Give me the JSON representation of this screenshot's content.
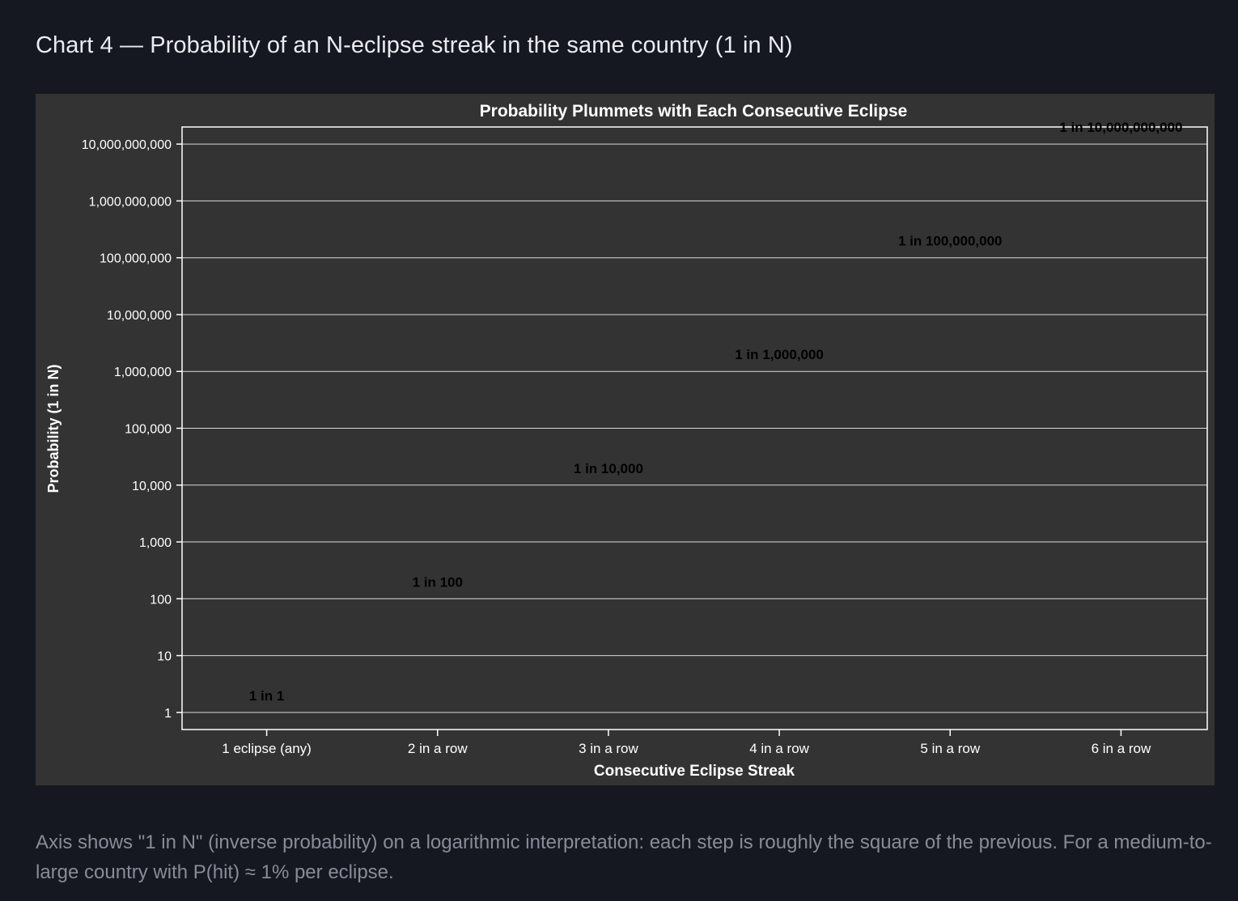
{
  "page": {
    "heading": "Chart 4 — Probability of an N-eclipse streak in the same country (1 in N)",
    "caption": "Axis shows \"1 in N\" (inverse probability) on a logarithmic interpretation: each step is roughly the square of the previous. For a medium-to-large country with P(hit) ≈ 1% per eclipse."
  },
  "colors": {
    "page_background": "#151821",
    "panel_background": "#333333",
    "axis": "#ffffff",
    "gridline": "#d9d9d9",
    "heading_text": "#e9ebf0",
    "caption_text": "#878c98",
    "data_label_text": "#000000"
  },
  "chart_data": {
    "type": "scatter",
    "title": "Probability Plummets with Each Consecutive Eclipse",
    "xlabel": "Consecutive Eclipse Streak",
    "ylabel": "Probability (1 in N)",
    "y_scale": "log",
    "ylim": [
      0.5,
      20000000000
    ],
    "grid": true,
    "legend": "none",
    "marker": "none (text labels only)",
    "categories": [
      "1 eclipse (any)",
      "2 in a row",
      "3 in a row",
      "4 in a row",
      "5 in a row",
      "6 in a row"
    ],
    "values": [
      1,
      100,
      10000,
      1000000,
      100000000,
      10000000000
    ],
    "data_labels": [
      "1 in 1",
      "1 in 100",
      "1 in 10,000",
      "1 in 1,000,000",
      "1 in 100,000,000",
      "1 in 10,000,000,000"
    ],
    "y_ticks": [
      1,
      10,
      100,
      1000,
      10000,
      100000,
      1000000,
      10000000,
      100000000,
      1000000000,
      10000000000
    ],
    "y_tick_labels": [
      "1",
      "10",
      "100",
      "1,000",
      "10,000",
      "100,000",
      "1,000,000",
      "10,000,000",
      "100,000,000",
      "1,000,000,000",
      "10,000,000,000"
    ]
  }
}
